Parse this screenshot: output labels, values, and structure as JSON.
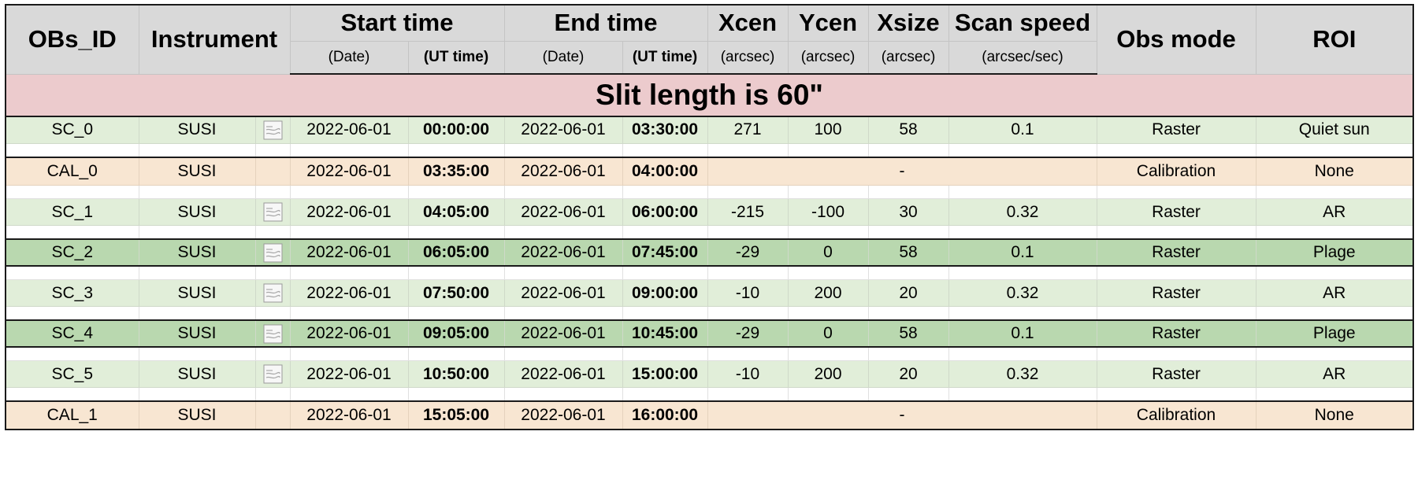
{
  "columns": {
    "obs_id": "OBs_ID",
    "instrument": "Instrument",
    "start_time": "Start time",
    "end_time": "End time",
    "xcen": "Xcen",
    "ycen": "Ycen",
    "xsize": "Xsize",
    "scan_speed": "Scan speed",
    "obs_mode": "Obs mode",
    "roi": "ROI"
  },
  "subheaders": {
    "start_date": "(Date)",
    "start_ut": "(UT time)",
    "end_date": "(Date)",
    "end_ut": "(UT time)",
    "xcen_unit": "(arcsec)",
    "ycen_unit": "(arcsec)",
    "xsize_unit": "(arcsec)",
    "scan_speed_unit": "(arcsec/sec)"
  },
  "banner": "Slit length is 60\"",
  "colors": {
    "raster_light": "#e1eed9",
    "raster_dark": "#b9d8af",
    "calibration": "#f8e6d2",
    "banner": "#eccbcd",
    "header": "#d9d9d9"
  },
  "rows": [
    {
      "id": "SC_0",
      "instrument": "SUSI",
      "has_doc_icon": true,
      "start_date": "2022-06-01",
      "start_ut": "00:00:00",
      "end_date": "2022-06-01",
      "end_ut": "03:30:00",
      "xcen": "271",
      "ycen": "100",
      "xsize": "58",
      "scan_speed": "0.1",
      "mode": "Raster",
      "roi": "Quiet sun",
      "style": "light"
    },
    {
      "id": "CAL_0",
      "instrument": "SUSI",
      "has_doc_icon": false,
      "start_date": "2022-06-01",
      "start_ut": "03:35:00",
      "end_date": "2022-06-01",
      "end_ut": "04:00:00",
      "dash": "-",
      "mode": "Calibration",
      "roi": "None",
      "style": "cal"
    },
    {
      "id": "SC_1",
      "instrument": "SUSI",
      "has_doc_icon": true,
      "start_date": "2022-06-01",
      "start_ut": "04:05:00",
      "end_date": "2022-06-01",
      "end_ut": "06:00:00",
      "xcen": "-215",
      "ycen": "-100",
      "xsize": "30",
      "scan_speed": "0.32",
      "mode": "Raster",
      "roi": "AR",
      "style": "light"
    },
    {
      "id": "SC_2",
      "instrument": "SUSI",
      "has_doc_icon": true,
      "start_date": "2022-06-01",
      "start_ut": "06:05:00",
      "end_date": "2022-06-01",
      "end_ut": "07:45:00",
      "xcen": "-29",
      "ycen": "0",
      "xsize": "58",
      "scan_speed": "0.1",
      "mode": "Raster",
      "roi": "Plage",
      "style": "dark"
    },
    {
      "id": "SC_3",
      "instrument": "SUSI",
      "has_doc_icon": true,
      "start_date": "2022-06-01",
      "start_ut": "07:50:00",
      "end_date": "2022-06-01",
      "end_ut": "09:00:00",
      "xcen": "-10",
      "ycen": "200",
      "xsize": "20",
      "scan_speed": "0.32",
      "mode": "Raster",
      "roi": "AR",
      "style": "light"
    },
    {
      "id": "SC_4",
      "instrument": "SUSI",
      "has_doc_icon": true,
      "start_date": "2022-06-01",
      "start_ut": "09:05:00",
      "end_date": "2022-06-01",
      "end_ut": "10:45:00",
      "xcen": "-29",
      "ycen": "0",
      "xsize": "58",
      "scan_speed": "0.1",
      "mode": "Raster",
      "roi": "Plage",
      "style": "dark"
    },
    {
      "id": "SC_5",
      "instrument": "SUSI",
      "has_doc_icon": true,
      "start_date": "2022-06-01",
      "start_ut": "10:50:00",
      "end_date": "2022-06-01",
      "end_ut": "15:00:00",
      "xcen": "-10",
      "ycen": "200",
      "xsize": "20",
      "scan_speed": "0.32",
      "mode": "Raster",
      "roi": "AR",
      "style": "light"
    },
    {
      "id": "CAL_1",
      "instrument": "SUSI",
      "has_doc_icon": false,
      "start_date": "2022-06-01",
      "start_ut": "15:05:00",
      "end_date": "2022-06-01",
      "end_ut": "16:00:00",
      "dash": "-",
      "mode": "Calibration",
      "roi": "None",
      "style": "cal"
    }
  ]
}
